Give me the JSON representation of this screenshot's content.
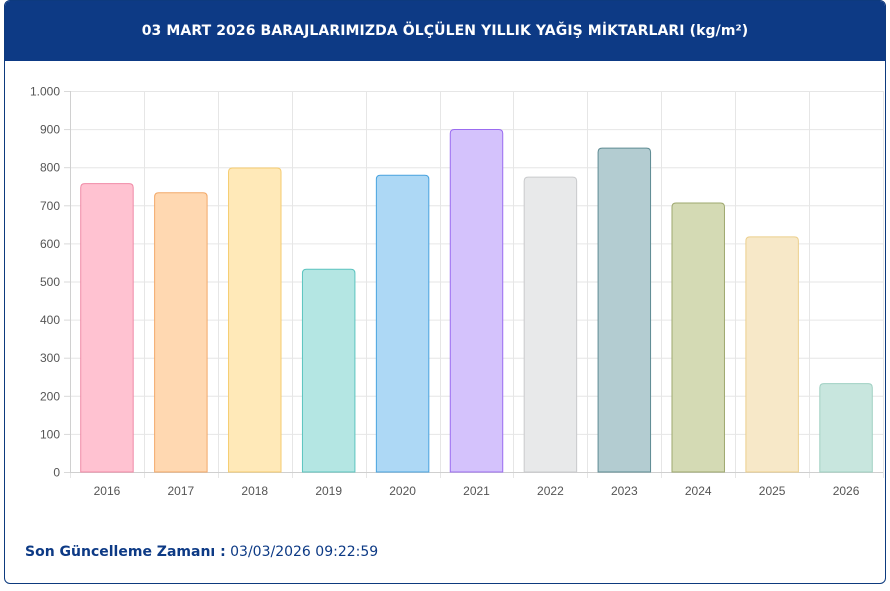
{
  "header": {
    "title": "03 MART 2026 BARAJLARIMIZDA ÖLÇÜLEN YILLIK YAĞIŞ MİKTARLARI (kg/m²)"
  },
  "footer": {
    "label": "Son Güncelleme Zamanı :",
    "value": "03/03/2026 09:22:59"
  },
  "chart_data": {
    "type": "bar",
    "title": "03 MART 2026 BARAJLARIMIZDA ÖLÇÜLEN YILLIK YAĞIŞ MİKTARLARI (kg/m²)",
    "xlabel": "",
    "ylabel": "",
    "categories": [
      "2016",
      "2017",
      "2018",
      "2019",
      "2020",
      "2021",
      "2022",
      "2023",
      "2024",
      "2025",
      "2026"
    ],
    "values": [
      757,
      733,
      798,
      532,
      779,
      899,
      774,
      850,
      706,
      617,
      232
    ],
    "ylim": [
      0,
      1000
    ],
    "yticks": [
      0,
      100,
      200,
      300,
      400,
      500,
      600,
      700,
      800,
      900,
      1000
    ],
    "ytick_labels": [
      "0",
      "100",
      "200",
      "300",
      "400",
      "500",
      "600",
      "700",
      "800",
      "900",
      "1.000"
    ],
    "grid": true,
    "legend": "none",
    "fill_colors": [
      "#ffc2d1",
      "#ffd8b1",
      "#ffe9b8",
      "#b4e6e3",
      "#add8f5",
      "#d4c2fc",
      "#e8e9ea",
      "#b3ccd1",
      "#d4dab4",
      "#f7e8c8",
      "#c8e6de"
    ],
    "border_colors": [
      "#f08aa6",
      "#f2a868",
      "#f5cc70",
      "#5cc4bf",
      "#4aa3df",
      "#9b6cf0",
      "#c9cacc",
      "#5e8b93",
      "#9ea86e",
      "#eccf8c",
      "#9fd0c2"
    ]
  }
}
